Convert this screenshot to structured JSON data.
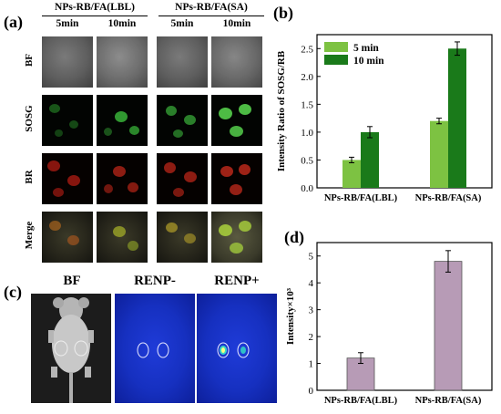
{
  "panel_a": {
    "label": "(a)",
    "group_left": "NPs-RB/FA(LBL)",
    "group_right": "NPs-RB/FA(SA)",
    "time_headers": [
      "5min",
      "10min",
      "5min",
      "10min"
    ],
    "row_labels": [
      "BF",
      "SOSG",
      "BR",
      "Merge"
    ]
  },
  "panel_b": {
    "label": "(b)",
    "colors": {
      "5 min": "#7dc242",
      "10 min": "#1a7a1a"
    }
  },
  "panel_c": {
    "label": "(c)",
    "image_labels": [
      "BF",
      "RENP-",
      "RENP+"
    ]
  },
  "panel_d": {
    "label": "(d)",
    "color": "#b79bb6"
  },
  "chart_data": [
    {
      "type": "bar",
      "categories": [
        "NPs-RB/FA(LBL)",
        "NPs-RB/FA(SA)"
      ],
      "series": [
        {
          "name": "5 min",
          "values": [
            0.5,
            1.2
          ],
          "errors": [
            0.05,
            0.05
          ]
        },
        {
          "name": "10 min",
          "values": [
            1.0,
            2.5
          ],
          "errors": [
            0.1,
            0.12
          ]
        }
      ],
      "xlabel": "",
      "ylabel": "Intensity Ratio of SOSG/RB",
      "ylim": [
        0,
        2.75
      ],
      "yticks": [
        "0.0",
        "0.5",
        "1.0",
        "1.5",
        "2.0",
        "2.5"
      ],
      "legend": "top-left"
    },
    {
      "type": "bar",
      "categories": [
        "NPs-RB/FA(LBL)",
        "NPs-RB/FA(SA)"
      ],
      "values": [
        1.2,
        4.8
      ],
      "errors": [
        0.2,
        0.4
      ],
      "xlabel": "",
      "ylabel": "Intensity×10³",
      "ylim": [
        0,
        5.5
      ],
      "yticks": [
        "0",
        "1",
        "2",
        "3",
        "4",
        "5"
      ]
    }
  ]
}
